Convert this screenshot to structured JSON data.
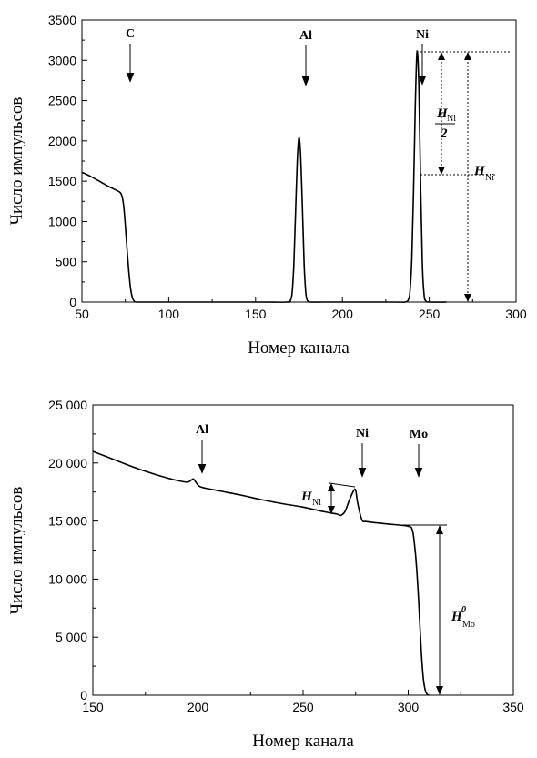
{
  "chart_data": [
    {
      "type": "line",
      "xlabel": "Номер канала",
      "ylabel": "Число импульсов",
      "xlim": [
        50,
        300
      ],
      "ylim": [
        0,
        3500
      ],
      "x_ticks": [
        50,
        100,
        150,
        200,
        250,
        300
      ],
      "x_tick_labels": [
        "50",
        "100",
        "150",
        "200",
        "250",
        "300"
      ],
      "y_ticks": [
        0,
        500,
        1000,
        1500,
        2000,
        2500,
        3000,
        3500
      ],
      "y_tick_labels": [
        "0",
        "500",
        "1000",
        "1500",
        "2000",
        "2500",
        "3000",
        "3500"
      ],
      "series": [
        {
          "x": [
            50,
            55,
            60,
            65,
            70,
            72,
            73,
            74,
            75,
            76,
            77,
            78,
            79,
            80,
            81,
            82,
            90,
            100,
            150,
            168,
            170,
            171,
            172,
            173,
            174,
            175,
            176,
            177,
            178,
            179,
            180,
            182,
            190,
            230,
            236,
            238,
            239,
            240,
            241,
            242,
            243,
            244,
            245,
            246,
            247,
            248,
            250,
            260
          ],
          "y": [
            1610,
            1560,
            1500,
            1440,
            1385,
            1360,
            1320,
            1200,
            950,
            650,
            380,
            170,
            60,
            15,
            0,
            0,
            0,
            0,
            0,
            0,
            20,
            110,
            450,
            1100,
            1750,
            2040,
            1800,
            1150,
            450,
            100,
            15,
            0,
            0,
            0,
            0,
            30,
            150,
            550,
            1400,
            2450,
            3110,
            2700,
            1500,
            500,
            100,
            15,
            0,
            0
          ]
        }
      ],
      "peak_labels": [
        {
          "text": "C",
          "x": 77
        },
        {
          "text": "Al",
          "x": 175
        },
        {
          "text": "Ni",
          "x": 243
        }
      ],
      "annotations": {
        "half_label": "H",
        "half_sub": "Ni",
        "half_divisor": "2",
        "full_label": "H",
        "full_sub": "Ni"
      }
    },
    {
      "type": "line",
      "xlabel": "Номер канала",
      "ylabel": "Число импульсов",
      "xlim": [
        150,
        350
      ],
      "ylim": [
        0,
        25000
      ],
      "x_ticks": [
        150,
        200,
        250,
        300,
        350
      ],
      "x_tick_labels": [
        "150",
        "200",
        "250",
        "300",
        "350"
      ],
      "y_ticks": [
        0,
        5000,
        10000,
        15000,
        20000,
        25000
      ],
      "y_tick_labels": [
        "0",
        "5 000",
        "10 000",
        "15 000",
        "20 000",
        "25 000"
      ],
      "series": [
        {
          "x": [
            150,
            160,
            170,
            180,
            190,
            195,
            197,
            198,
            200,
            202,
            210,
            220,
            230,
            240,
            250,
            260,
            266,
            268,
            270,
            272,
            274,
            275,
            276,
            278,
            280,
            290,
            300,
            302,
            303,
            304,
            305,
            306,
            307,
            308,
            309,
            310
          ],
          "y": [
            21000,
            20300,
            19600,
            19000,
            18500,
            18350,
            18550,
            18600,
            18100,
            17900,
            17600,
            17250,
            16850,
            16500,
            16200,
            15800,
            15600,
            15500,
            15850,
            16800,
            17600,
            17650,
            16500,
            15100,
            14950,
            14750,
            14550,
            14200,
            13000,
            11000,
            8000,
            4500,
            1800,
            500,
            80,
            0
          ]
        }
      ],
      "peak_labels": [
        {
          "text": "Al",
          "x": 200
        },
        {
          "text": "Ni",
          "x": 277
        },
        {
          "text": "Mo",
          "x": 305
        }
      ],
      "annotations": {
        "ni_label": "H",
        "ni_sub": "Ni",
        "mo_label": "H",
        "mo_sup": "0",
        "mo_sub": "Mo"
      }
    }
  ]
}
